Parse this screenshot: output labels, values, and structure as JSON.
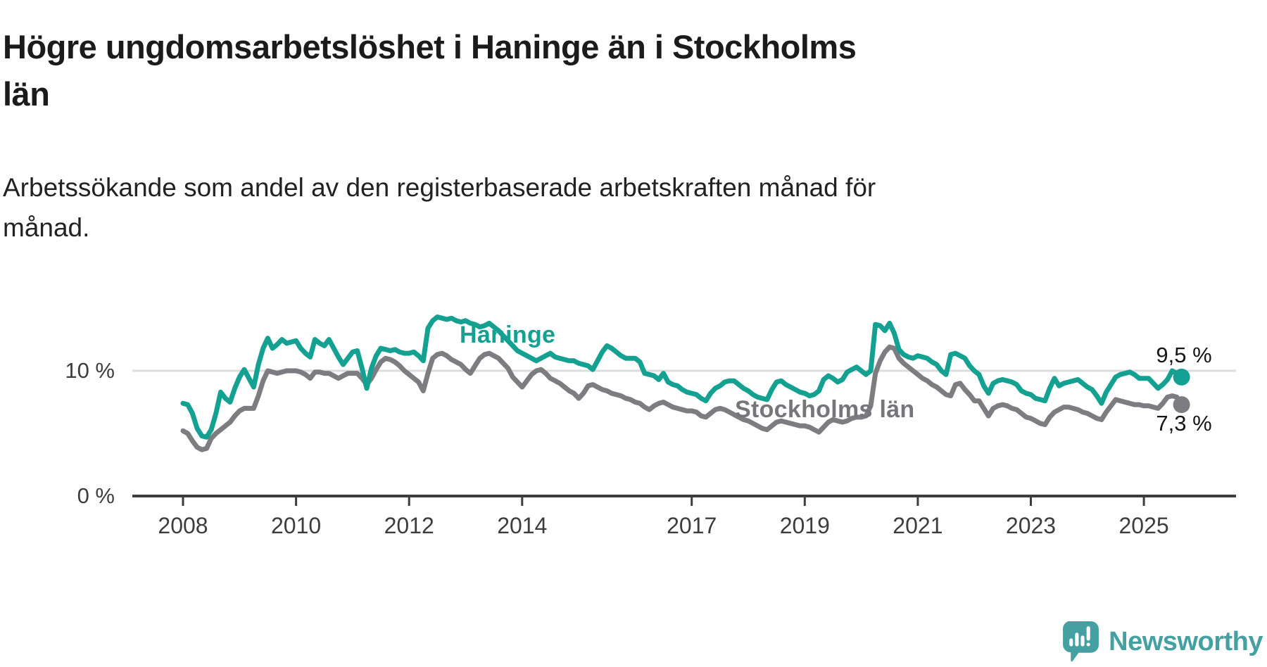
{
  "chart_data": {
    "type": "line",
    "title_lines": [
      "Högre ungdomsarbetslöshet i Haninge än i Stockholms",
      "län"
    ],
    "subtitle_lines": [
      "Arbetssökande som andel av den registerbaserade arbetskraften månad för",
      "månad."
    ],
    "x": {
      "frequency": "monthly",
      "start_year": 2008,
      "start_month": 1,
      "end_year": 2025,
      "end_month": 9,
      "tick_years": [
        2008,
        2010,
        2012,
        2014,
        2017,
        2019,
        2021,
        2023,
        2025
      ]
    },
    "y": {
      "range": [
        0,
        16
      ],
      "ticks": [
        {
          "value": 0,
          "label": "0 %"
        },
        {
          "value": 10,
          "label": "10 %"
        }
      ],
      "gridline_values": [
        10
      ]
    },
    "legend_position": "inline-labels-on-lines",
    "series": [
      {
        "name": "Haninge",
        "color": "#14a192",
        "end_label": "9,5 %",
        "end_value": 9.5,
        "values": [
          7.4,
          7.3,
          6.6,
          5.4,
          4.8,
          4.7,
          5.3,
          6.6,
          8.3,
          7.8,
          7.5,
          8.6,
          9.5,
          10.1,
          9.4,
          8.7,
          10.5,
          11.8,
          12.6,
          11.8,
          12.1,
          12.5,
          12.2,
          12.3,
          12.4,
          11.8,
          11.4,
          11.1,
          12.5,
          12.2,
          12.0,
          12.5,
          11.8,
          11.1,
          10.5,
          11.0,
          11.5,
          11.6,
          10.2,
          8.6,
          10.2,
          11.2,
          11.8,
          11.7,
          11.6,
          11.7,
          11.5,
          11.4,
          11.4,
          11.5,
          11.2,
          10.8,
          13.4,
          14.0,
          14.3,
          14.2,
          14.1,
          14.2,
          14.0,
          13.9,
          14.0,
          13.8,
          13.7,
          13.5,
          13.6,
          13.8,
          13.5,
          13.2,
          12.8,
          12.4,
          12.0,
          11.6,
          11.4,
          11.2,
          11.0,
          10.8,
          11.0,
          11.2,
          11.4,
          11.1,
          11.0,
          10.9,
          10.8,
          10.8,
          10.6,
          10.5,
          10.4,
          10.1,
          10.8,
          11.5,
          12.0,
          11.8,
          11.5,
          11.2,
          11.0,
          11.0,
          11.0,
          10.7,
          9.8,
          9.7,
          9.6,
          9.3,
          9.8,
          9.1,
          8.9,
          8.8,
          8.5,
          8.3,
          8.2,
          8.1,
          7.8,
          7.6,
          8.2,
          8.6,
          8.8,
          9.1,
          9.2,
          9.2,
          8.9,
          8.6,
          8.4,
          8.1,
          7.9,
          7.8,
          7.7,
          8.5,
          9.1,
          9.2,
          8.9,
          8.7,
          8.5,
          8.3,
          8.2,
          8.0,
          8.1,
          8.4,
          9.3,
          9.6,
          9.4,
          9.1,
          9.3,
          9.9,
          10.1,
          10.3,
          10.0,
          9.7,
          10.0,
          13.7,
          13.6,
          13.2,
          13.8,
          13.0,
          11.7,
          11.3,
          11.1,
          11.0,
          11.2,
          11.1,
          11.0,
          10.7,
          10.5,
          10.0,
          9.7,
          11.3,
          11.4,
          11.2,
          11.0,
          10.4,
          10.0,
          9.7,
          8.8,
          8.2,
          9.0,
          9.2,
          9.3,
          9.2,
          9.1,
          8.9,
          8.4,
          8.2,
          8.1,
          7.8,
          7.7,
          7.6,
          8.6,
          9.4,
          8.8,
          9.0,
          9.1,
          9.2,
          9.3,
          9.0,
          8.7,
          8.5,
          8.0,
          7.4,
          8.3,
          8.9,
          9.5,
          9.7,
          9.8,
          9.9,
          9.7,
          9.4,
          9.4,
          9.4,
          9.0,
          8.6,
          8.9,
          9.3,
          10.0,
          9.8,
          9.5
        ]
      },
      {
        "name": "Stockholms län",
        "color": "#7d7d81",
        "end_label": "7,3 %",
        "end_value": 7.3,
        "values": [
          5.2,
          5.0,
          4.4,
          3.9,
          3.7,
          3.8,
          4.6,
          5.0,
          5.3,
          5.6,
          5.9,
          6.4,
          6.8,
          7.0,
          7.0,
          7.0,
          8.0,
          9.2,
          10.0,
          9.9,
          9.8,
          9.9,
          10.0,
          10.0,
          10.0,
          9.9,
          9.7,
          9.4,
          9.9,
          9.9,
          9.8,
          9.8,
          9.6,
          9.4,
          9.6,
          9.8,
          9.8,
          9.8,
          9.4,
          8.9,
          9.4,
          10.1,
          10.7,
          11.0,
          10.9,
          10.7,
          10.4,
          10.0,
          9.7,
          9.4,
          9.1,
          8.4,
          9.8,
          11.0,
          11.3,
          11.4,
          11.2,
          10.9,
          10.7,
          10.5,
          10.1,
          9.8,
          10.4,
          11.0,
          11.3,
          11.4,
          11.2,
          11.0,
          10.6,
          10.2,
          9.5,
          9.1,
          8.7,
          9.2,
          9.7,
          10.0,
          10.1,
          9.8,
          9.4,
          9.2,
          9.0,
          8.7,
          8.4,
          8.2,
          7.8,
          8.2,
          8.8,
          8.9,
          8.7,
          8.5,
          8.4,
          8.2,
          8.1,
          8.0,
          7.8,
          7.7,
          7.5,
          7.4,
          7.1,
          6.9,
          7.2,
          7.4,
          7.5,
          7.3,
          7.1,
          7.0,
          6.9,
          6.8,
          6.8,
          6.7,
          6.4,
          6.3,
          6.6,
          6.9,
          7.0,
          6.9,
          6.7,
          6.5,
          6.3,
          6.1,
          6.0,
          5.8,
          5.6,
          5.4,
          5.3,
          5.6,
          5.9,
          6.0,
          5.9,
          5.8,
          5.7,
          5.6,
          5.6,
          5.5,
          5.3,
          5.1,
          5.5,
          5.9,
          6.1,
          6.0,
          5.9,
          6.0,
          6.2,
          6.3,
          6.3,
          6.4,
          7.2,
          9.8,
          10.8,
          11.5,
          11.9,
          11.8,
          11.0,
          10.6,
          10.3,
          10.0,
          9.7,
          9.4,
          9.2,
          8.9,
          8.7,
          8.4,
          8.1,
          8.0,
          8.9,
          9.0,
          8.5,
          8.1,
          7.6,
          7.6,
          7.0,
          6.4,
          7.0,
          7.2,
          7.3,
          7.2,
          7.0,
          6.9,
          6.6,
          6.3,
          6.2,
          6.0,
          5.8,
          5.7,
          6.3,
          6.7,
          6.9,
          7.1,
          7.1,
          7.0,
          6.9,
          6.7,
          6.6,
          6.4,
          6.2,
          6.1,
          6.7,
          7.2,
          7.7,
          7.6,
          7.5,
          7.4,
          7.3,
          7.3,
          7.2,
          7.2,
          7.1,
          7.0,
          7.4,
          7.9,
          8.0,
          7.9,
          7.3
        ]
      }
    ]
  },
  "logo": {
    "text": "Newsworthy",
    "color": "#44a0a1",
    "icon": "speech-bubble-bar-chart-icon"
  },
  "colors": {
    "axis": "#3d3d3d",
    "gridline": "#dcdcdc",
    "title": "#1b1b1b",
    "annotation": "#161616"
  }
}
